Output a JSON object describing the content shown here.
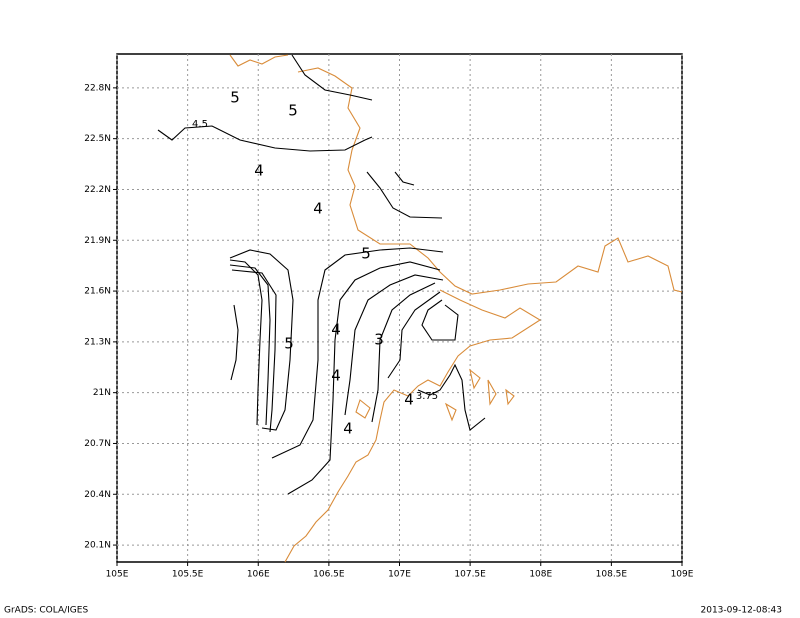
{
  "map": {
    "xlim": [
      105,
      109
    ],
    "ylim": [
      20,
      23
    ],
    "x_ticks": [
      {
        "value": 105,
        "label": "105E"
      },
      {
        "value": 105.5,
        "label": "105.5E"
      },
      {
        "value": 106,
        "label": "106E"
      },
      {
        "value": 106.5,
        "label": "106.5E"
      },
      {
        "value": 107,
        "label": "107E"
      },
      {
        "value": 107.5,
        "label": "107.5E"
      },
      {
        "value": 108,
        "label": "108E"
      },
      {
        "value": 108.5,
        "label": "108.5E"
      },
      {
        "value": 109,
        "label": "109E"
      }
    ],
    "y_ticks": [
      {
        "value": 20.1,
        "label": "20.1N"
      },
      {
        "value": 20.4,
        "label": "20.4N"
      },
      {
        "value": 20.7,
        "label": "20.7N"
      },
      {
        "value": 21,
        "label": "21N"
      },
      {
        "value": 21.3,
        "label": "21.3N"
      },
      {
        "value": 21.6,
        "label": "21.6N"
      },
      {
        "value": 21.9,
        "label": "21.9N"
      },
      {
        "value": 22.2,
        "label": "22.2N"
      },
      {
        "value": 22.5,
        "label": "22.5N"
      },
      {
        "value": 22.8,
        "label": "22.8N"
      }
    ],
    "grid": true,
    "contour_labels": [
      "5",
      "5",
      "4.5",
      "4",
      "4",
      "5",
      "4",
      "5",
      "3",
      "4",
      "4",
      "3.75",
      "4"
    ]
  },
  "footer": {
    "left": "GrADS: COLA/IGES",
    "right": "2013-09-12-08:43"
  }
}
